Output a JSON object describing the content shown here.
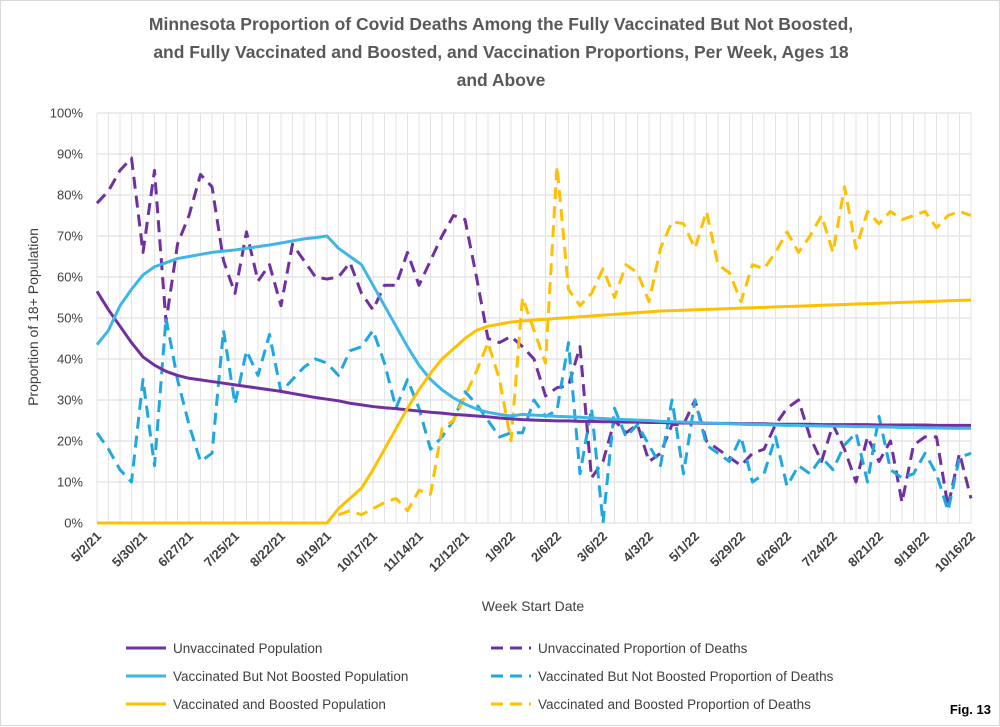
{
  "chart_data": {
    "type": "line",
    "title_lines": [
      "Minnesota Proportion of Covid Deaths Among the Fully Vaccinated But Not Boosted,",
      "and Fully Vaccinated and Boosted, and Vaccination Proportions, Per Week, Ages 18",
      "and Above"
    ],
    "xlabel": "Week Start Date",
    "ylabel": "Proportion of 18+ Population",
    "ylim": [
      0,
      100
    ],
    "y_ticks": [
      0,
      10,
      20,
      30,
      40,
      50,
      60,
      70,
      80,
      90,
      100
    ],
    "y_tick_labels": [
      "0%",
      "10%",
      "20%",
      "30%",
      "40%",
      "50%",
      "60%",
      "70%",
      "80%",
      "90%",
      "100%"
    ],
    "week_count": 77,
    "x_tick_labels": [
      "5/2/21",
      "5/30/21",
      "6/27/21",
      "7/25/21",
      "8/22/21",
      "9/19/21",
      "10/17/21",
      "11/14/21",
      "12/12/21",
      "1/9/22",
      "2/6/22",
      "3/6/22",
      "4/3/22",
      "5/1/22",
      "5/29/22",
      "6/26/22",
      "7/24/22",
      "8/21/22",
      "9/18/22",
      "10/16/22"
    ],
    "grid": true,
    "legend_placement": "bottom",
    "figure_label": "Fig. 13",
    "series": [
      {
        "name": "Unvaccinated Population",
        "color": "#7030a0",
        "dash": "solid",
        "values": [
          56.5,
          52,
          48,
          44,
          40.5,
          38.5,
          37,
          36,
          35.3,
          34.9,
          34.5,
          34.1,
          33.7,
          33.3,
          32.9,
          32.5,
          32.1,
          31.6,
          31.1,
          30.6,
          30.2,
          29.8,
          29.2,
          28.8,
          28.4,
          28.1,
          27.9,
          27.6,
          27.3,
          27,
          26.8,
          26.5,
          26.3,
          26.1,
          25.9,
          25.6,
          25.4,
          25.2,
          25.1,
          25,
          24.9,
          24.9,
          24.8,
          24.8,
          24.7,
          24.7,
          24.6,
          24.6,
          24.5,
          24.5,
          24.4,
          24.4,
          24.4,
          24.3,
          24.3,
          24.3,
          24.2,
          24.2,
          24.2,
          24.1,
          24.1,
          24.1,
          24.1,
          24,
          24,
          24,
          24,
          24,
          23.9,
          23.9,
          23.9,
          23.9,
          23.9,
          23.8,
          23.8,
          23.8,
          23.8
        ]
      },
      {
        "name": "Unvaccinated Proportion of Deaths",
        "color": "#7030a0",
        "dash": "dashed",
        "values": [
          78,
          81,
          86,
          89,
          66,
          86,
          49,
          68,
          75,
          85,
          82,
          64,
          56,
          71,
          59,
          63,
          53,
          68,
          64,
          60,
          59.5,
          60,
          63.5,
          56,
          52,
          58,
          58,
          66,
          58,
          64,
          70,
          75,
          74,
          60,
          45,
          44,
          45.5,
          43,
          40,
          31,
          33,
          33.5,
          43,
          11,
          15,
          25,
          22,
          24,
          15,
          17,
          24,
          24,
          30,
          20,
          18,
          16,
          14,
          17,
          18,
          24,
          28,
          30,
          21,
          15,
          24,
          18,
          10,
          21,
          15,
          20,
          5,
          19,
          21,
          21,
          4,
          17,
          6
        ]
      },
      {
        "name": "Vaccinated But Not Boosted Population",
        "color": "#3fb6e8",
        "dash": "solid",
        "values": [
          43.5,
          47,
          53,
          57,
          60.5,
          62.5,
          63.5,
          64.5,
          65,
          65.5,
          66,
          66.3,
          66.6,
          67,
          67.4,
          67.8,
          68.3,
          68.8,
          69.3,
          69.6,
          70,
          67,
          65,
          63,
          58,
          53,
          48,
          43,
          38.5,
          35,
          32.5,
          30.5,
          29,
          27.8,
          27,
          26.5,
          26.1,
          26.5,
          26.3,
          26.2,
          26,
          25.9,
          25.8,
          25.6,
          25.5,
          25.3,
          25.2,
          25.1,
          25,
          24.8,
          24.7,
          24.6,
          24.5,
          24.4,
          24.3,
          24.2,
          24.1,
          24,
          24,
          23.9,
          23.8,
          23.8,
          23.7,
          23.7,
          23.6,
          23.6,
          23.5,
          23.5,
          23.4,
          23.4,
          23.3,
          23.3,
          23.2,
          23.2,
          23.1,
          23.1,
          23.1
        ]
      },
      {
        "name": "Vaccinated But Not Boosted Proportion of Deaths",
        "color": "#1fa8e0",
        "dash": "dashed",
        "values": [
          22,
          18,
          13,
          10,
          35,
          14,
          50,
          35,
          24,
          15,
          17,
          47,
          29,
          42,
          36,
          46,
          32,
          35,
          38,
          40,
          39,
          36,
          42,
          43,
          47,
          39,
          28,
          35,
          28,
          18,
          21,
          25,
          32,
          29,
          25,
          21,
          22,
          22,
          30,
          26,
          27.5,
          44,
          12,
          28,
          0,
          28,
          21,
          24,
          19,
          14,
          30,
          12,
          30,
          19,
          17,
          15,
          21,
          10,
          12,
          21,
          9,
          14,
          12,
          16,
          13,
          19,
          22,
          10,
          26,
          13,
          11,
          12,
          17,
          12,
          3,
          16,
          17
        ]
      },
      {
        "name": "Vaccinated and Boosted Population",
        "color": "#ffc000",
        "dash": "solid",
        "values": [
          0,
          0,
          0,
          0,
          0,
          0,
          0,
          0,
          0,
          0,
          0,
          0,
          0,
          0,
          0,
          0,
          0,
          0,
          0,
          0,
          0,
          3.5,
          6,
          8.5,
          13,
          18,
          23,
          28,
          32.5,
          36.5,
          40,
          42.5,
          45,
          47,
          48,
          48.5,
          49,
          49.3,
          49.5,
          49.7,
          49.9,
          50.1,
          50.3,
          50.5,
          50.7,
          50.9,
          51.1,
          51.3,
          51.5,
          51.7,
          51.8,
          51.9,
          52,
          52.1,
          52.2,
          52.3,
          52.4,
          52.5,
          52.6,
          52.7,
          52.8,
          52.9,
          53,
          53.1,
          53.2,
          53.3,
          53.4,
          53.5,
          53.6,
          53.7,
          53.8,
          53.9,
          54,
          54.1,
          54.2,
          54.3,
          54.4
        ]
      },
      {
        "name": "Vaccinated and Boosted Proportion of Deaths",
        "color": "#ffc000",
        "dash": "dashed",
        "values": [
          null,
          null,
          null,
          null,
          null,
          null,
          null,
          null,
          null,
          null,
          null,
          null,
          null,
          null,
          null,
          null,
          null,
          null,
          null,
          null,
          null,
          2,
          3,
          2,
          3.5,
          5,
          6,
          3,
          8,
          7,
          23,
          25,
          31,
          37,
          44,
          35,
          20,
          55,
          47,
          39,
          87,
          57,
          53,
          56,
          62,
          55,
          63,
          61,
          54,
          67,
          73.5,
          73,
          67,
          76,
          63,
          61,
          54,
          63,
          62,
          66,
          71,
          66,
          70,
          75,
          66,
          82,
          67,
          76,
          73,
          76,
          74,
          75,
          76,
          72,
          75,
          76,
          75
        ]
      }
    ]
  }
}
